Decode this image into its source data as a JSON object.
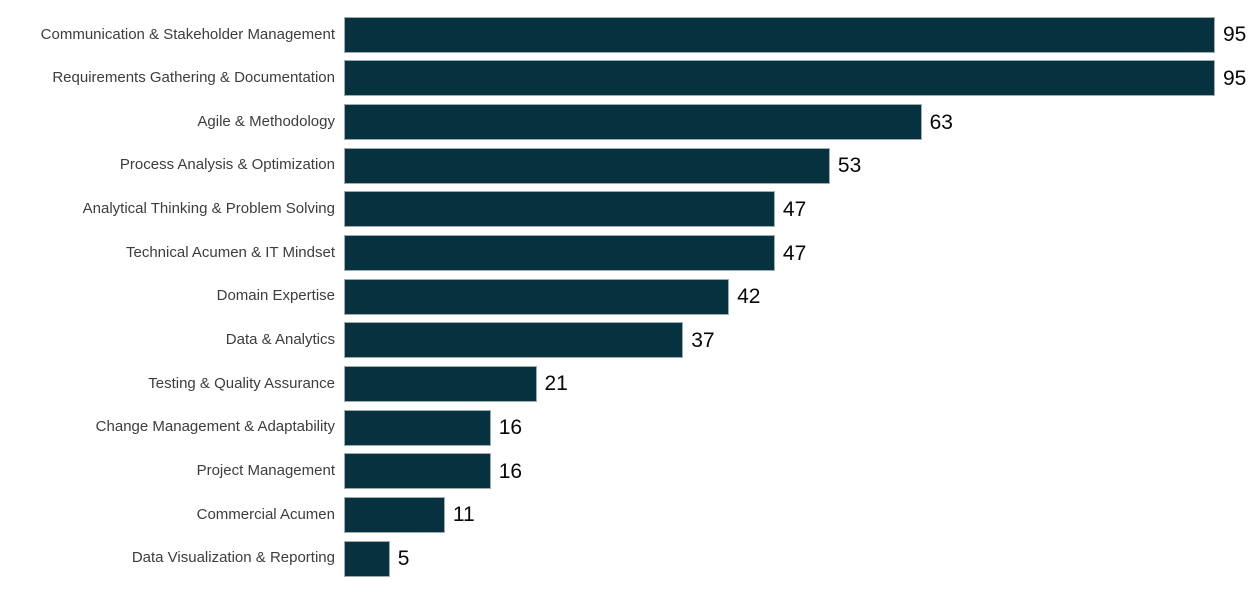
{
  "chart_data": {
    "type": "bar",
    "orientation": "horizontal",
    "title": "",
    "xlabel": "",
    "ylabel": "",
    "categories": [
      "Communication & Stakeholder Management",
      "Requirements Gathering & Documentation",
      "Agile & Methodology",
      "Process Analysis & Optimization",
      "Analytical Thinking & Problem Solving",
      "Technical Acumen & IT Mindset",
      "Domain Expertise",
      "Data & Analytics",
      "Testing & Quality Assurance",
      "Change Management & Adaptability",
      "Project Management",
      "Commercial Acumen",
      "Data Visualization & Reporting"
    ],
    "values": [
      95,
      95,
      63,
      53,
      47,
      47,
      42,
      37,
      21,
      16,
      16,
      11,
      5
    ],
    "xlim": [
      0,
      95
    ],
    "grid": false,
    "legend": "none",
    "axes_visible": false,
    "data_labels_visible": true,
    "bar_color": "#05323E",
    "bar_border_color": "#9fadb1",
    "category_label_color": "#3d3d3d",
    "value_label_color": "#070707",
    "background_color": "#ffffff"
  }
}
